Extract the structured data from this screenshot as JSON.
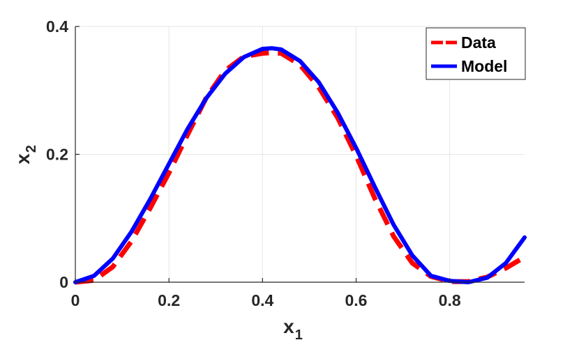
{
  "chart_data": {
    "type": "line",
    "xlabel": "x",
    "xlabel_sub": "1",
    "ylabel": "x",
    "ylabel_sub": "2",
    "xlim": [
      0,
      0.96
    ],
    "ylim": [
      0,
      0.4
    ],
    "x_ticks": [
      0,
      0.2,
      0.4,
      0.6,
      0.8
    ],
    "x_tick_labels": [
      "0",
      "0.2",
      "0.4",
      "0.6",
      "0.8"
    ],
    "y_ticks": [
      0,
      0.2,
      0.4
    ],
    "y_tick_labels": [
      "0",
      "0.2",
      "0.4"
    ],
    "grid": true,
    "legend_position": "top-right",
    "series": [
      {
        "name": "Data",
        "style": "dashed",
        "color": "#ff0000",
        "x": [
          0,
          0.04,
          0.08,
          0.12,
          0.16,
          0.2,
          0.24,
          0.28,
          0.32,
          0.36,
          0.4,
          0.42,
          0.44,
          0.48,
          0.52,
          0.56,
          0.6,
          0.64,
          0.68,
          0.72,
          0.76,
          0.8,
          0.84,
          0.88,
          0.92,
          0.95
        ],
        "y": [
          0,
          0.003,
          0.024,
          0.064,
          0.116,
          0.171,
          0.231,
          0.289,
          0.331,
          0.353,
          0.358,
          0.359,
          0.358,
          0.34,
          0.305,
          0.258,
          0.198,
          0.131,
          0.072,
          0.03,
          0.009,
          0.001,
          0.001,
          0.008,
          0.022,
          0.035
        ]
      },
      {
        "name": "Model",
        "style": "solid",
        "color": "#0000ff",
        "x": [
          0,
          0.04,
          0.08,
          0.12,
          0.16,
          0.2,
          0.24,
          0.28,
          0.32,
          0.36,
          0.4,
          0.42,
          0.44,
          0.48,
          0.52,
          0.56,
          0.6,
          0.64,
          0.68,
          0.72,
          0.76,
          0.8,
          0.84,
          0.88,
          0.92,
          0.96
        ],
        "y": [
          0,
          0.01,
          0.037,
          0.079,
          0.13,
          0.185,
          0.24,
          0.288,
          0.326,
          0.352,
          0.365,
          0.366,
          0.364,
          0.346,
          0.313,
          0.266,
          0.21,
          0.149,
          0.09,
          0.042,
          0.01,
          0.002,
          0.0,
          0.007,
          0.03,
          0.07
        ]
      }
    ]
  }
}
